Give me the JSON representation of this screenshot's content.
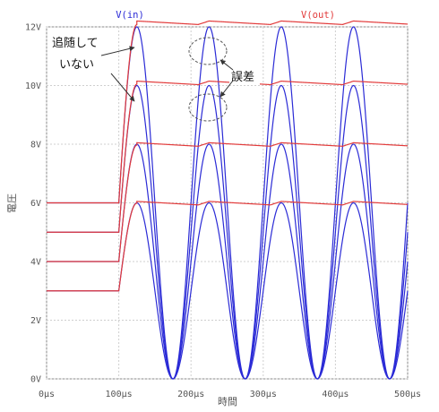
{
  "chart_data": {
    "type": "line",
    "title": "",
    "xlabel": "時間",
    "ylabel": "電圧",
    "xlim": [
      0,
      500
    ],
    "ylim": [
      0,
      12
    ],
    "grid": true,
    "xticks": [
      0,
      100,
      200,
      300,
      400,
      500
    ],
    "xtick_labels": [
      "0µs",
      "100µs",
      "200µs",
      "300µs",
      "400µs",
      "500µs"
    ],
    "yticks": [
      0,
      2,
      4,
      6,
      8,
      10,
      12
    ],
    "ytick_labels": [
      "0V",
      "2V",
      "4V",
      "6V",
      "8V",
      "10V",
      "12V"
    ],
    "legend": [
      {
        "label": "V(in)",
        "color": "#2b2bd6"
      },
      {
        "label": "V(out)",
        "color": "#e23b3b"
      }
    ],
    "colors": {
      "vin": "#2b2bd6",
      "vout": "#e23b3b",
      "grid": "#cfcfcf"
    },
    "signal": {
      "step_start_us": 100,
      "sine_start_us": 105,
      "period_us": 100,
      "input_peaks_v": [
        6,
        8,
        10,
        12
      ]
    },
    "series": [
      {
        "name": "V(in)",
        "color": "#2b2bd6",
        "description": "Four sine inputs, 0V to peak 6/8/10/12V, period 100µs, starting at 100µs"
      },
      {
        "name": "V(out)",
        "color": "#e23b3b",
        "description": "Four outputs: initial 3/4/5/6V hold until 100µs, then track input peak with slight ripple",
        "initial_v": [
          3,
          4,
          5,
          6
        ],
        "hold_v": [
          6.0,
          8.0,
          10.1,
          12.1
        ],
        "peak_at_rise_v": [
          6.05,
          8.05,
          10.15,
          12.2
        ],
        "ripple_v": 0.12
      }
    ],
    "annotations": [
      {
        "text": "追随して\nいない",
        "lines": [
          "追随して",
          "いない"
        ]
      },
      {
        "text": "誤差"
      }
    ]
  }
}
